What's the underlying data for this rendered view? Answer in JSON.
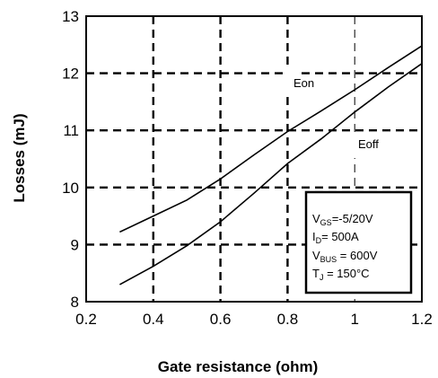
{
  "chart_data": {
    "type": "line",
    "title": "",
    "xlabel": "Gate resistance (ohm)",
    "ylabel": "Losses (mJ)",
    "xlim": [
      0.2,
      1.2
    ],
    "ylim": [
      8,
      13
    ],
    "x_ticks": [
      "0.2",
      "0.4",
      "0.6",
      "0.8",
      "1",
      "1.2"
    ],
    "y_ticks": [
      "8",
      "9",
      "10",
      "11",
      "12",
      "13"
    ],
    "grid": true,
    "series": [
      {
        "name": "Eon",
        "x": [
          0.3,
          0.4,
          0.5,
          0.6,
          0.7,
          0.8,
          0.9,
          1.0,
          1.1,
          1.2
        ],
        "y": [
          9.22,
          9.5,
          9.78,
          10.15,
          10.57,
          10.98,
          11.34,
          11.71,
          12.1,
          12.48
        ]
      },
      {
        "name": "Eoff",
        "x": [
          0.3,
          0.4,
          0.5,
          0.6,
          0.7,
          0.8,
          0.9,
          1.0,
          1.1,
          1.2
        ],
        "y": [
          8.3,
          8.62,
          8.98,
          9.4,
          9.9,
          10.42,
          10.85,
          11.32,
          11.76,
          12.17
        ]
      }
    ],
    "annotations": [
      {
        "text": "Eon",
        "series": "Eon"
      },
      {
        "text": "Eoff",
        "series": "Eoff"
      }
    ],
    "conditions": {
      "line1": {
        "main": "V",
        "sub": "GS",
        "rest": "=-5/20V"
      },
      "line2": {
        "main": "I",
        "sub": "D",
        "rest": "= 500A"
      },
      "line3": {
        "main": "V",
        "sub": "BUS",
        "rest": " = 600V"
      },
      "line4": {
        "main": "T",
        "sub": "J",
        "rest": " = 150°C"
      }
    }
  }
}
